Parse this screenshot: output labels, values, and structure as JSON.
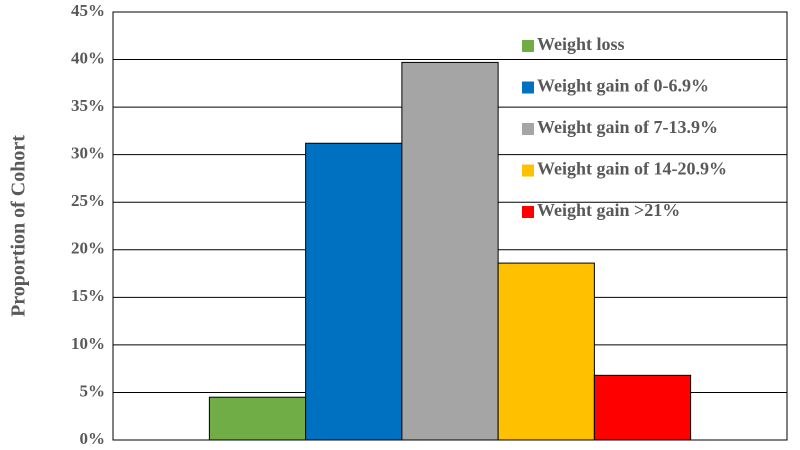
{
  "chart_data": {
    "type": "bar",
    "y_label": "Proportion of Cohort",
    "categories": [
      null
    ],
    "series": [
      {
        "name": "Weight loss",
        "color": "#70ad47",
        "values": [
          4.5
        ]
      },
      {
        "name": "Weight gain of 0-6.9%",
        "color": "#0070c0",
        "values": [
          31.2
        ]
      },
      {
        "name": "Weight gain of 7-13.9%",
        "color": "#a5a5a5",
        "values": [
          39.7
        ]
      },
      {
        "name": "Weight gain of 14-20.9%",
        "color": "#ffc000",
        "values": [
          18.6
        ]
      },
      {
        "name": "Weight gain >21%",
        "color": "#ff0000",
        "values": [
          6.8
        ]
      }
    ],
    "ylim": [
      0,
      45
    ],
    "yticks": [
      {
        "value": 0,
        "label": "0%"
      },
      {
        "value": 5,
        "label": "5%"
      },
      {
        "value": 10,
        "label": "10%"
      },
      {
        "value": 15,
        "label": "15%"
      },
      {
        "value": 20,
        "label": "20%"
      },
      {
        "value": 25,
        "label": "25%"
      },
      {
        "value": 30,
        "label": "30%"
      },
      {
        "value": 35,
        "label": "35%"
      },
      {
        "value": 40,
        "label": "40%"
      },
      {
        "value": 45,
        "label": "45%"
      }
    ],
    "grid": true,
    "legend_position": "upper right"
  }
}
